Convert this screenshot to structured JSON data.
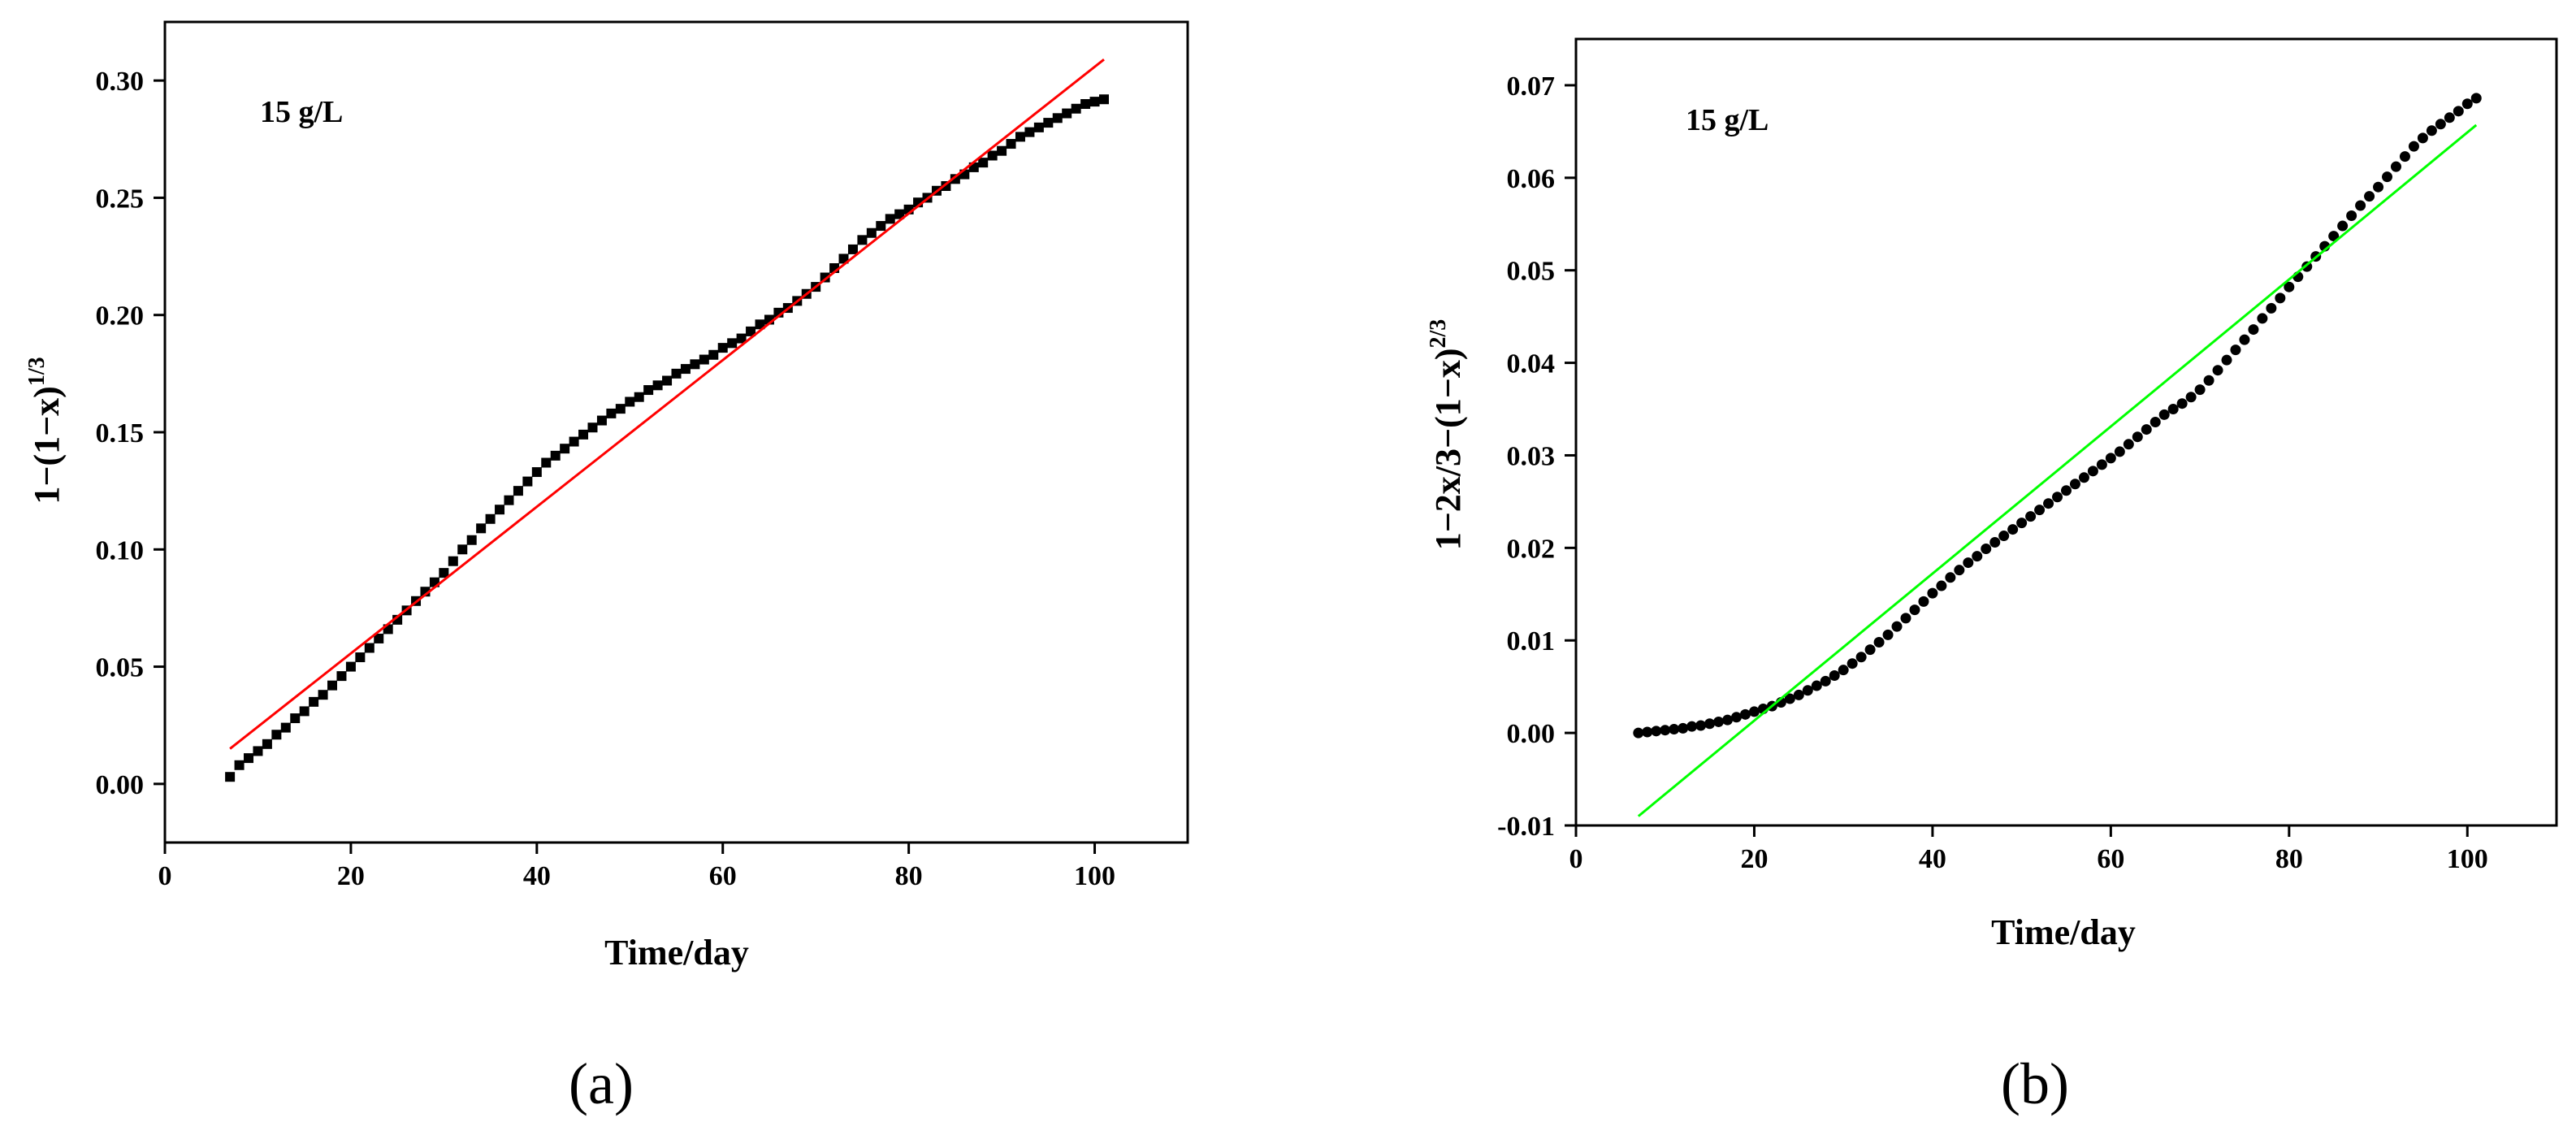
{
  "chart_data": [
    {
      "type": "scatter",
      "panel_label": "(a)",
      "annotation": "15 g/L",
      "title": "",
      "xlabel": "Time/day",
      "ylabel_base": "1−(1−x)",
      "ylabel_sup": "1/3",
      "xlim": [
        0,
        110
      ],
      "ylim": [
        -0.025,
        0.325
      ],
      "xticks": [
        0,
        20,
        40,
        60,
        80,
        100
      ],
      "xtick_labels": [
        "0",
        "20",
        "40",
        "60",
        "80",
        "100"
      ],
      "yticks": [
        0.0,
        0.05,
        0.1,
        0.15,
        0.2,
        0.25,
        0.3
      ],
      "ytick_labels": [
        "0.00",
        "0.05",
        "0.10",
        "0.15",
        "0.20",
        "0.25",
        "0.30"
      ],
      "marker": "square",
      "marker_color": "#000000",
      "fit_color": "#ff0000",
      "fit_line": {
        "x": [
          7,
          101
        ],
        "y": [
          0.015,
          0.309
        ]
      },
      "series": [
        {
          "x": [
            7,
            8,
            9,
            10,
            11,
            12,
            13,
            14,
            15,
            16,
            17,
            18,
            19,
            20,
            21,
            22,
            23,
            24,
            25,
            26,
            27,
            28,
            29,
            30,
            31,
            32,
            33,
            34,
            35,
            36,
            37,
            38,
            39,
            40,
            41,
            42,
            43,
            44,
            45,
            46,
            47,
            48,
            49,
            50,
            51,
            52,
            53,
            54,
            55,
            56,
            57,
            58,
            59,
            60,
            61,
            62,
            63,
            64,
            65,
            66,
            67,
            68,
            69,
            70,
            71,
            72,
            73,
            74,
            75,
            76,
            77,
            78,
            79,
            80,
            81,
            82,
            83,
            84,
            85,
            86,
            87,
            88,
            89,
            90,
            91,
            92,
            93,
            94,
            95,
            96,
            97,
            98,
            99,
            100,
            101
          ],
          "y": [
            0.003,
            0.008,
            0.011,
            0.014,
            0.017,
            0.021,
            0.024,
            0.028,
            0.031,
            0.035,
            0.038,
            0.042,
            0.046,
            0.05,
            0.054,
            0.058,
            0.062,
            0.066,
            0.07,
            0.074,
            0.078,
            0.082,
            0.086,
            0.09,
            0.095,
            0.1,
            0.104,
            0.109,
            0.113,
            0.117,
            0.121,
            0.125,
            0.129,
            0.133,
            0.137,
            0.14,
            0.143,
            0.146,
            0.149,
            0.152,
            0.155,
            0.158,
            0.16,
            0.163,
            0.165,
            0.168,
            0.17,
            0.172,
            0.175,
            0.177,
            0.179,
            0.181,
            0.183,
            0.186,
            0.188,
            0.19,
            0.193,
            0.196,
            0.198,
            0.201,
            0.203,
            0.206,
            0.209,
            0.212,
            0.216,
            0.22,
            0.224,
            0.228,
            0.232,
            0.235,
            0.238,
            0.241,
            0.243,
            0.245,
            0.248,
            0.25,
            0.253,
            0.255,
            0.258,
            0.26,
            0.263,
            0.265,
            0.268,
            0.27,
            0.273,
            0.276,
            0.278,
            0.28,
            0.282,
            0.284,
            0.286,
            0.288,
            0.29,
            0.291,
            0.292
          ]
        }
      ]
    },
    {
      "type": "scatter",
      "panel_label": "(b)",
      "annotation": "15 g/L",
      "title": "",
      "xlabel": "Time/day",
      "ylabel_base": "1−2x/3−(1−x)",
      "ylabel_sup": "2/3",
      "xlim": [
        0,
        110
      ],
      "ylim": [
        -0.01,
        0.075
      ],
      "xticks": [
        0,
        20,
        40,
        60,
        80,
        100
      ],
      "xtick_labels": [
        "0",
        "20",
        "40",
        "60",
        "80",
        "100"
      ],
      "yticks": [
        -0.01,
        0.0,
        0.01,
        0.02,
        0.03,
        0.04,
        0.05,
        0.06,
        0.07
      ],
      "ytick_labels": [
        "-0.01",
        "0.00",
        "0.01",
        "0.02",
        "0.03",
        "0.04",
        "0.05",
        "0.06",
        "0.07"
      ],
      "marker": "circle",
      "marker_color": "#000000",
      "fit_color": "#00ff00",
      "fit_line": {
        "x": [
          7,
          101
        ],
        "y": [
          -0.009,
          0.0657
        ]
      },
      "series": [
        {
          "x": [
            7,
            8,
            9,
            10,
            11,
            12,
            13,
            14,
            15,
            16,
            17,
            18,
            19,
            20,
            21,
            22,
            23,
            24,
            25,
            26,
            27,
            28,
            29,
            30,
            31,
            32,
            33,
            34,
            35,
            36,
            37,
            38,
            39,
            40,
            41,
            42,
            43,
            44,
            45,
            46,
            47,
            48,
            49,
            50,
            51,
            52,
            53,
            54,
            55,
            56,
            57,
            58,
            59,
            60,
            61,
            62,
            63,
            64,
            65,
            66,
            67,
            68,
            69,
            70,
            71,
            72,
            73,
            74,
            75,
            76,
            77,
            78,
            79,
            80,
            81,
            82,
            83,
            84,
            85,
            86,
            87,
            88,
            89,
            90,
            91,
            92,
            93,
            94,
            95,
            96,
            97,
            98,
            99,
            100,
            101
          ],
          "y": [
            0.0,
            0.0001,
            0.0002,
            0.0003,
            0.0004,
            0.0005,
            0.0007,
            0.0008,
            0.001,
            0.0012,
            0.0014,
            0.0017,
            0.002,
            0.0023,
            0.0026,
            0.0029,
            0.0033,
            0.0037,
            0.0041,
            0.0046,
            0.0051,
            0.0056,
            0.0062,
            0.0068,
            0.0075,
            0.0082,
            0.009,
            0.0098,
            0.0106,
            0.0115,
            0.0124,
            0.0133,
            0.0142,
            0.0151,
            0.0159,
            0.0168,
            0.0176,
            0.0184,
            0.0191,
            0.0199,
            0.0206,
            0.0213,
            0.022,
            0.0227,
            0.0234,
            0.0241,
            0.0248,
            0.0255,
            0.0262,
            0.0269,
            0.0276,
            0.0283,
            0.029,
            0.0297,
            0.0304,
            0.0312,
            0.032,
            0.0328,
            0.0336,
            0.0344,
            0.035,
            0.0356,
            0.0363,
            0.0371,
            0.0381,
            0.0392,
            0.0403,
            0.0414,
            0.0425,
            0.0436,
            0.0448,
            0.0459,
            0.047,
            0.0482,
            0.0493,
            0.0504,
            0.0515,
            0.0526,
            0.0537,
            0.0548,
            0.0559,
            0.057,
            0.058,
            0.059,
            0.0601,
            0.0612,
            0.0623,
            0.0634,
            0.0643,
            0.0651,
            0.0658,
            0.0665,
            0.0672,
            0.068,
            0.0686
          ]
        }
      ]
    }
  ]
}
